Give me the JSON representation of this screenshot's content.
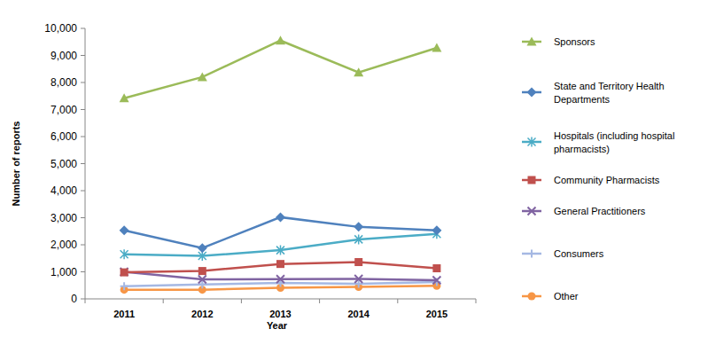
{
  "chart_data": {
    "type": "line",
    "x_label": "Year",
    "y_label": "Number of reports",
    "categories": [
      "2011",
      "2012",
      "2013",
      "2014",
      "2015"
    ],
    "ylim": [
      0,
      10000
    ],
    "yticks": [
      0,
      {
        "value": 1000,
        "label": "1,000"
      },
      {
        "value": 2000,
        "label": "2,000"
      },
      {
        "value": 3000,
        "label": "3,000"
      },
      {
        "value": 4000,
        "label": "4,000"
      },
      {
        "value": 5000,
        "label": "5,000"
      },
      {
        "value": 6000,
        "label": "6,000"
      },
      {
        "value": 7000,
        "label": "7,000"
      },
      {
        "value": 8000,
        "label": "8,000"
      },
      {
        "value": 9000,
        "label": "9,000"
      },
      {
        "value": 10000,
        "label": "10,000"
      }
    ],
    "grid": false,
    "legend": "right",
    "series": [
      {
        "name": "Sponsors",
        "color": "#9bbb59",
        "marker": "triangle",
        "line_style": "solid",
        "values": [
          7420,
          8200,
          9550,
          8370,
          9280
        ]
      },
      {
        "name": "State and Territory Health Departments",
        "color": "#4f81bd",
        "marker": "diamond",
        "line_style": "solid",
        "values": [
          2530,
          1880,
          3020,
          2660,
          2530
        ]
      },
      {
        "name": "Hospitals (including hospital pharmacists)",
        "color": "#4bacc6",
        "marker": "star",
        "line_style": "solid",
        "values": [
          1650,
          1590,
          1800,
          2200,
          2400
        ]
      },
      {
        "name": "Community Pharmacists",
        "color": "#c0504d",
        "marker": "square",
        "line_style": "solid",
        "values": [
          980,
          1030,
          1290,
          1360,
          1130
        ]
      },
      {
        "name": "General Practitioners",
        "color": "#8064a2",
        "marker": "x",
        "line_style": "solid",
        "values": [
          1000,
          720,
          730,
          740,
          690
        ]
      },
      {
        "name": "Consumers",
        "color": "#a5b8e3",
        "marker": "plus",
        "line_style": "solid",
        "values": [
          470,
          530,
          590,
          560,
          620
        ]
      },
      {
        "name": "Other",
        "color": "#f79646",
        "marker": "circle",
        "line_style": "solid",
        "values": [
          340,
          340,
          410,
          440,
          480
        ]
      }
    ]
  }
}
